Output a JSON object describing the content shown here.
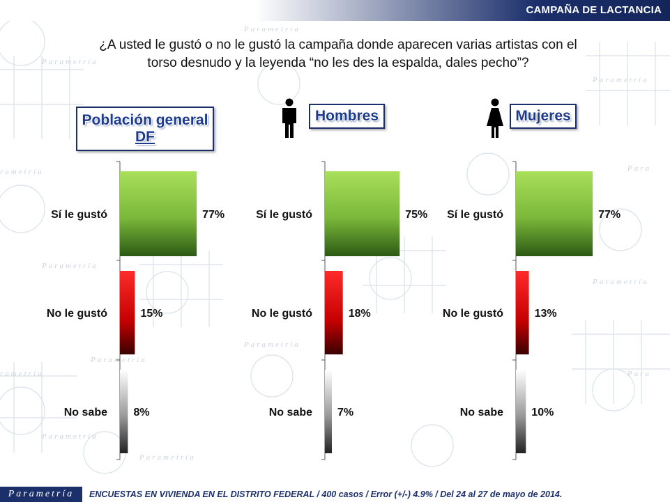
{
  "header": {
    "title": "CAMPAÑA DE LACTANCIA"
  },
  "question": {
    "line1": "¿A usted le gustó o no le gustó la campaña donde aparecen varias artistas con el",
    "line2": "torso desnudo y la leyenda “no les des la espalda, dales pecho”?"
  },
  "panels": [
    {
      "title_line1": "Población general",
      "title_line2": "DF"
    },
    {
      "title": "Hombres",
      "icon": "male-figure-icon"
    },
    {
      "title": "Mujeres",
      "icon": "female-figure-icon"
    }
  ],
  "colors": {
    "yes": "#8cc63f",
    "no": "#e11d1d",
    "unknown": "#9a9a9a",
    "brand": "#1b2f6b"
  },
  "chart_data": [
    {
      "type": "bar",
      "orientation": "horizontal",
      "title": "Población general DF",
      "categories": [
        "Sí le gustó",
        "No le gustó",
        "No sabe"
      ],
      "values": [
        77,
        15,
        8
      ],
      "value_labels": [
        "77%",
        "15%",
        "8%"
      ],
      "xlim": [
        0,
        100
      ]
    },
    {
      "type": "bar",
      "orientation": "horizontal",
      "title": "Hombres",
      "categories": [
        "Sí le gustó",
        "No le gustó",
        "No sabe"
      ],
      "values": [
        75,
        18,
        7
      ],
      "value_labels": [
        "75%",
        "18%",
        "7%"
      ],
      "xlim": [
        0,
        100
      ]
    },
    {
      "type": "bar",
      "orientation": "horizontal",
      "title": "Mujeres",
      "categories": [
        "Sí le gustó",
        "No le gustó",
        "No sabe"
      ],
      "values": [
        77,
        13,
        10
      ],
      "value_labels": [
        "77%",
        "13%",
        "10%"
      ],
      "xlim": [
        0,
        100
      ]
    }
  ],
  "footer": {
    "logo": "Parametría",
    "text": "ENCUESTAS EN VIVIENDA EN EL DISTRITO FEDERAL / 400 casos / Error (+/-) 4.9% / Del 24 al 27 de mayo de 2014."
  }
}
